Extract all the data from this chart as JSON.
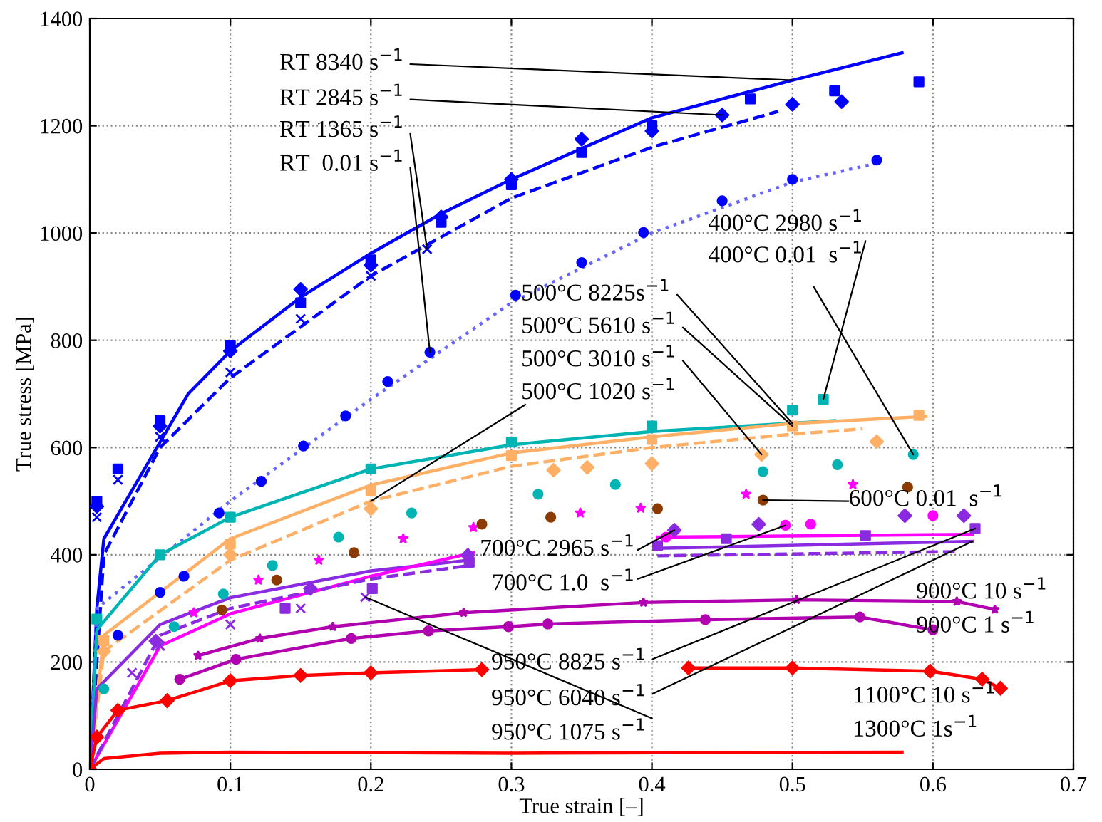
{
  "chart_data": {
    "type": "line",
    "xlabel": "True strain [–]",
    "ylabel": "True stress [MPa]",
    "xlim": [
      0,
      0.7
    ],
    "ylim": [
      0,
      1400
    ],
    "xticks": [
      0,
      0.1,
      0.2,
      0.3,
      0.4,
      0.5,
      0.6,
      0.7
    ],
    "yticks": [
      0,
      200,
      400,
      600,
      800,
      1000,
      1200,
      1400
    ],
    "grid": true,
    "series": [
      {
        "color": "#0000ff",
        "line_style": "solid",
        "x": [
          0,
          0.005,
          0.01,
          0.05,
          0.07,
          0.1,
          0.15,
          0.2,
          0.25,
          0.3,
          0.4,
          0.5,
          0.578
        ],
        "values": [
          0,
          300,
          430,
          610,
          700,
          780,
          880,
          962,
          1036,
          1100,
          1215,
          1285,
          1336
        ]
      },
      {
        "type": "scatter",
        "color": "#0000ff",
        "marker": "square",
        "x": [
          0.005,
          0.02,
          0.05,
          0.1,
          0.15,
          0.2,
          0.25,
          0.3,
          0.35,
          0.4,
          0.47,
          0.53,
          0.59
        ],
        "values": [
          500,
          560,
          650,
          790,
          870,
          950,
          1020,
          1090,
          1150,
          1200,
          1250,
          1265,
          1282
        ]
      },
      {
        "type": "scatter",
        "color": "#0000ff",
        "marker": "diamond",
        "x": [
          0.005,
          0.05,
          0.1,
          0.15,
          0.2,
          0.25,
          0.3,
          0.35,
          0.4,
          0.45,
          0.5,
          0.535
        ],
        "values": [
          490,
          640,
          780,
          895,
          940,
          1030,
          1100,
          1175,
          1190,
          1220,
          1240,
          1245
        ]
      },
      {
        "color": "#0000ff",
        "line_style": "dashed",
        "x": [
          0,
          0.01,
          0.05,
          0.1,
          0.2,
          0.3,
          0.4,
          0.49
        ],
        "values": [
          0,
          400,
          600,
          730,
          920,
          1065,
          1160,
          1227
        ]
      },
      {
        "type": "scatter",
        "color": "#0000ff",
        "marker": "cross",
        "x": [
          0.005,
          0.02,
          0.05,
          0.1,
          0.15,
          0.2,
          0.24
        ],
        "values": [
          470,
          540,
          620,
          740,
          840,
          920,
          970
        ]
      },
      {
        "type": "scatter",
        "color": "#0000ff",
        "marker": "circle",
        "x": [
          0.02,
          0.05,
          0.067,
          0.092,
          0.122,
          0.152,
          0.182,
          0.212,
          0.242,
          0.303,
          0.35,
          0.394,
          0.45,
          0.5,
          0.56
        ],
        "values": [
          250,
          330,
          360,
          478,
          537,
          603,
          659,
          723,
          778,
          884,
          945,
          1001,
          1060,
          1100,
          1136
        ]
      },
      {
        "color": "#6666ff",
        "line_style": "dotted",
        "x": [
          0,
          0.005,
          0.1,
          0.2,
          0.3,
          0.4,
          0.5,
          0.56
        ],
        "values": [
          0,
          300,
          500,
          690,
          870,
          1000,
          1095,
          1130
        ]
      },
      {
        "type": "scatter",
        "color": "#00b4b4",
        "marker": "square",
        "x": [
          0.005,
          0.05,
          0.1,
          0.2,
          0.3,
          0.4,
          0.5,
          0.522
        ],
        "values": [
          280,
          400,
          470,
          560,
          610,
          640,
          670,
          690
        ]
      },
      {
        "color": "#00b4b4",
        "line_style": "solid",
        "x": [
          0,
          0.005,
          0.05,
          0.1,
          0.2,
          0.3,
          0.4,
          0.53
        ],
        "values": [
          0,
          260,
          400,
          470,
          560,
          605,
          630,
          650
        ]
      },
      {
        "color": "#ffb066",
        "line_style": "solid",
        "x": [
          0,
          0.01,
          0.1,
          0.2,
          0.3,
          0.4,
          0.5,
          0.595
        ],
        "values": [
          0,
          250,
          430,
          530,
          590,
          620,
          645,
          658
        ]
      },
      {
        "type": "scatter",
        "color": "#ffb066",
        "marker": "square",
        "x": [
          0.01,
          0.1,
          0.2,
          0.3,
          0.4,
          0.5,
          0.59
        ],
        "values": [
          240,
          420,
          520,
          585,
          615,
          640,
          660
        ]
      },
      {
        "color": "#ffb066",
        "line_style": "dashed",
        "x": [
          0,
          0.01,
          0.1,
          0.2,
          0.3,
          0.4,
          0.5,
          0.55
        ],
        "values": [
          0,
          220,
          390,
          500,
          565,
          600,
          625,
          635
        ]
      },
      {
        "type": "scatter",
        "color": "#ffb066",
        "marker": "diamond",
        "x": [
          0.01,
          0.1,
          0.2,
          0.33,
          0.354,
          0.4,
          0.478,
          0.56
        ],
        "values": [
          220,
          400,
          486,
          558,
          563,
          570,
          587,
          611
        ]
      },
      {
        "type": "scatter",
        "color": "#00b4b4",
        "marker": "circle",
        "x": [
          0.01,
          0.06,
          0.095,
          0.13,
          0.177,
          0.229,
          0.319,
          0.374,
          0.479,
          0.532,
          0.586
        ],
        "values": [
          150,
          266,
          327,
          380,
          433,
          478,
          513,
          531,
          555,
          568,
          587
        ]
      },
      {
        "type": "scatter",
        "color": "#ff00ff",
        "marker": "star",
        "x": [
          0.074,
          0.12,
          0.163,
          0.223,
          0.273,
          0.349,
          0.392,
          0.467,
          0.543
        ],
        "values": [
          292,
          353,
          390,
          430,
          451,
          478,
          487,
          513,
          531
        ]
      },
      {
        "type": "scatter",
        "color": "#8b3a00",
        "marker": "circle",
        "x": [
          0.094,
          0.133,
          0.188,
          0.279,
          0.328,
          0.404,
          0.479,
          0.582
        ],
        "values": [
          297,
          353,
          404,
          457,
          470,
          486,
          502,
          526
        ]
      },
      {
        "type": "scatter",
        "color": "#8a2be2",
        "marker": "diamond",
        "x": [
          0.047,
          0.157,
          0.269,
          0.416,
          0.476,
          0.58,
          0.622
        ],
        "values": [
          239,
          337,
          399,
          446,
          457,
          473,
          473
        ]
      },
      {
        "color": "#8a2be2",
        "line_style": "solid",
        "x": [
          0,
          0.005,
          0.05,
          0.1,
          0.2,
          0.27,
          0.33,
          0.404,
          0.628
        ],
        "values": [
          0,
          150,
          270,
          320,
          370,
          390,
          null,
          412,
          425
        ]
      },
      {
        "color": "#ff00ff",
        "line_style": "solid",
        "x": [
          0,
          0.05,
          0.1,
          0.2,
          0.273,
          0.33,
          0.404,
          0.628
        ],
        "values": [
          0,
          230,
          290,
          360,
          404,
          null,
          433,
          438
        ]
      },
      {
        "type": "scatter",
        "color": "#8a2be2",
        "marker": "square",
        "x": [
          0.139,
          0.201,
          0.27,
          0.404,
          0.453,
          0.552,
          0.63
        ],
        "values": [
          300,
          337,
          386,
          417,
          430,
          436,
          449
        ]
      },
      {
        "color": "#8a2be2",
        "line_style": "dashed",
        "x": [
          0,
          0.05,
          0.1,
          0.2,
          0.27,
          0.33,
          0.404,
          0.618
        ],
        "values": [
          0,
          250,
          300,
          355,
          380,
          null,
          398,
          406
        ]
      },
      {
        "type": "scatter",
        "color": "#8a2be2",
        "marker": "cross",
        "x": [
          0.03,
          0.05,
          0.1,
          0.15,
          0.196
        ],
        "values": [
          180,
          230,
          270,
          300,
          321
        ]
      },
      {
        "type": "scatter",
        "color": "#ff00ff",
        "marker": "circle",
        "x": [
          0.41,
          0.495,
          0.513,
          0.6
        ],
        "values": [
          433,
          455,
          457,
          473
        ]
      },
      {
        "color": "#b000b0",
        "line_style": "solid",
        "marker": "star",
        "x": [
          0.077,
          0.121,
          0.173,
          0.266,
          0.394,
          0.503,
          0.617,
          0.644
        ],
        "values": [
          212,
          244,
          266,
          292,
          311,
          316,
          313,
          298
        ]
      },
      {
        "color": "#b000b0",
        "line_style": "solid",
        "marker": "circle",
        "x": [
          0.064,
          0.104,
          0.186,
          0.241,
          0.298,
          0.326,
          0.438,
          0.548,
          0.6
        ],
        "values": [
          168,
          205,
          244,
          258,
          266,
          271,
          279,
          284,
          260
        ]
      },
      {
        "color": "#ff0000",
        "line_style": "solid",
        "marker": "diamond",
        "x": [
          0,
          0.005,
          0.02,
          0.055,
          0.1,
          0.15,
          0.2,
          0.279
        ],
        "values": [
          0,
          60,
          110,
          128,
          165,
          175,
          180,
          186
        ]
      },
      {
        "color": "#ff0000",
        "line_style": "solid",
        "marker": "diamond",
        "x": [
          0.426,
          0.5,
          0.598,
          0.635,
          0.648
        ],
        "values": [
          189,
          189,
          183,
          168,
          151
        ]
      },
      {
        "color": "#ff0000",
        "line_style": "solid",
        "x": [
          0,
          0.01,
          0.05,
          0.1,
          0.3,
          0.578
        ],
        "values": [
          0,
          20,
          30,
          32,
          30,
          32
        ]
      }
    ],
    "annotations": [
      {
        "text": "RT 8340 s$^{−1}$",
        "x": 0.5,
        "y": 1285
      },
      {
        "text": "RT 2845 s$^{−1}$",
        "x": 0.45,
        "y": 1220
      },
      {
        "text": "RT 1365 s$^{−1}$",
        "x": 0.24,
        "y": 970
      },
      {
        "text": "RT  0.01 s$^{−1}$",
        "x": 0.242,
        "y": 778
      },
      {
        "text": "400°C 2980 s$^{−1}$",
        "x": 0.522,
        "y": 690
      },
      {
        "text": "400°C 0.01  s$^{−1}$",
        "x": 0.586,
        "y": 587
      },
      {
        "text": "500°C 8225s$^{−1}$",
        "x": 0.5,
        "y": 645
      },
      {
        "text": "500°C 5610 s$^{−1}$",
        "x": 0.5,
        "y": 640
      },
      {
        "text": "500°C 3010 s$^{−1}$",
        "x": 0.478,
        "y": 587
      },
      {
        "text": "500°C 1020 s$^{−1}$",
        "x": 0.2,
        "y": 500
      },
      {
        "text": "600°C 0.01  s$^{−1}$",
        "x": 0.479,
        "y": 502
      },
      {
        "text": "700°C 2965 s$^{−1}$",
        "x": 0.416,
        "y": 446
      },
      {
        "text": "700°C 1.0  s$^{−1}$",
        "x": 0.495,
        "y": 455
      },
      "900°C 10 s$^{−1}$",
      "900°C 1 s$^{−1}$",
      {
        "text": "950°C 8825 s$^{−1}$",
        "x": 0.63,
        "y": 449
      },
      {
        "text": "950°C 6040 s$^{−1}$",
        "x": 0.628,
        "y": 425
      },
      {
        "text": "950°C 1075 s$^{−1}$",
        "x": 0.196,
        "y": 321
      },
      "1100°C 10 s$^{−1}$",
      "1300°C 1s$^{−1}$"
    ]
  }
}
